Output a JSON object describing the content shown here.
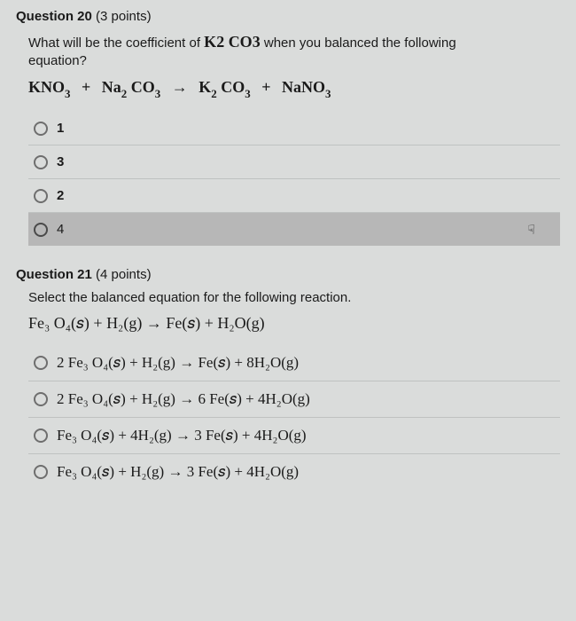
{
  "q20": {
    "header_bold": "Question 20 ",
    "header_points": "(3 points)",
    "prompt_1": "What will be the coefficient of ",
    "prompt_compound": "K₂ CO₃",
    "prompt_2": " when you balanced the following",
    "prompt_3": "equation?",
    "equation": {
      "r1": "KNO",
      "r1s": "3",
      "r2a": "Na",
      "r2as": "2",
      "r2b": " CO",
      "r2bs": "3",
      "p1a": "K",
      "p1as": "2",
      "p1b": " CO",
      "p1bs": "3",
      "p2": "NaNO",
      "p2s": "3",
      "plus": "+",
      "arrow": "→"
    },
    "options": [
      {
        "label": "1",
        "selected": false
      },
      {
        "label": "3",
        "selected": false
      },
      {
        "label": "2",
        "selected": false
      },
      {
        "label": "4",
        "selected": true
      }
    ],
    "cursor_glyph": "☟"
  },
  "q21": {
    "header_bold": "Question 21 ",
    "header_points": "(4 points)",
    "prompt": "Select the balanced equation for the following reaction.",
    "main_equation": "Fe₃ O₄(𝑠)  +  H₂(g)   →    Fe(𝑠)  +  H₂O(g)",
    "options": [
      {
        "text": "2 Fe₃ O₄(𝑠)  +  H₂(g)   →    Fe(𝑠)  +  8H₂O(g)",
        "selected": false
      },
      {
        "text": "2 Fe₃ O₄(𝑠)  +  H₂(g)   →   6 Fe(𝑠)  +  4H₂O(g)",
        "selected": false
      },
      {
        "text": "Fe₃ O₄(𝑠)  +  4H₂(g)   →   3 Fe(𝑠)  +  4H₂O(g)",
        "selected": false
      },
      {
        "text": "Fe₃ O₄(𝑠)  +  H₂(g)   →   3 Fe(𝑠)  +  4H₂O(g)",
        "selected": false
      }
    ]
  },
  "colors": {
    "background": "#dadcdb",
    "border": "#bfc2c1",
    "selected_bg": "#b7b7b7",
    "text": "#1a1a1a"
  }
}
